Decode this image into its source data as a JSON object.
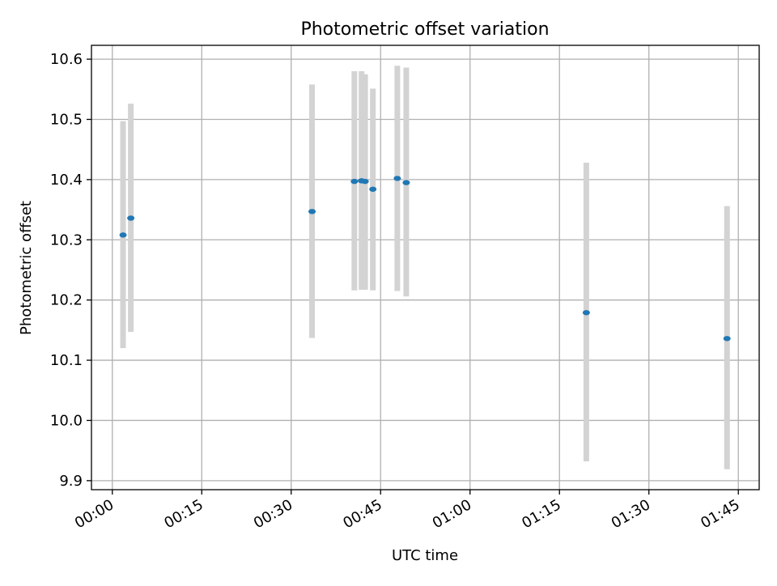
{
  "chart_data": {
    "type": "scatter",
    "title": "Photometric offset variation",
    "xlabel": "UTC time",
    "ylabel": "Photometric offset",
    "x_ticks": [
      "00:00",
      "00:15",
      "00:30",
      "00:45",
      "01:00",
      "01:15",
      "01:30",
      "01:45"
    ],
    "x_tick_minutes": [
      0,
      15,
      30,
      45,
      60,
      75,
      90,
      105
    ],
    "xlim_minutes": [
      -3.5,
      108.5
    ],
    "y_ticks": [
      "9.9",
      "10.0",
      "10.1",
      "10.2",
      "10.3",
      "10.4",
      "10.5",
      "10.6"
    ],
    "y_tick_values": [
      9.9,
      10.0,
      10.1,
      10.2,
      10.3,
      10.4,
      10.5,
      10.6
    ],
    "ylim": [
      9.885,
      10.623
    ],
    "grid": true,
    "points": [
      {
        "time": "00:01:48",
        "y": 10.308,
        "err_low": 10.12,
        "err_high": 10.497
      },
      {
        "time": "00:03:06",
        "y": 10.336,
        "err_low": 10.147,
        "err_high": 10.526
      },
      {
        "time": "00:33:30",
        "y": 10.347,
        "err_low": 10.137,
        "err_high": 10.558
      },
      {
        "time": "00:40:36",
        "y": 10.397,
        "err_low": 10.216,
        "err_high": 10.58
      },
      {
        "time": "00:41:48",
        "y": 10.398,
        "err_low": 10.217,
        "err_high": 10.58
      },
      {
        "time": "00:42:24",
        "y": 10.397,
        "err_low": 10.217,
        "err_high": 10.575
      },
      {
        "time": "00:43:42",
        "y": 10.384,
        "err_low": 10.216,
        "err_high": 10.551
      },
      {
        "time": "00:47:48",
        "y": 10.402,
        "err_low": 10.215,
        "err_high": 10.589
      },
      {
        "time": "00:49:18",
        "y": 10.395,
        "err_low": 10.206,
        "err_high": 10.586
      },
      {
        "time": "01:19:30",
        "y": 10.179,
        "err_low": 9.932,
        "err_high": 10.428
      },
      {
        "time": "01:43:06",
        "y": 10.136,
        "err_low": 9.919,
        "err_high": 10.356
      }
    ],
    "colors": {
      "point": "#1f77b4",
      "errorbar": "#d3d3d3",
      "grid": "#b0b0b0",
      "axis": "#000000"
    }
  }
}
